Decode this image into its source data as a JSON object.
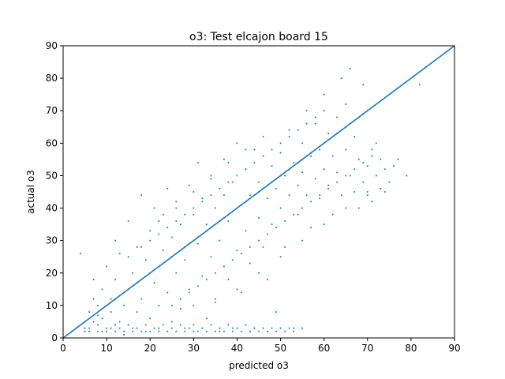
{
  "chart_data": {
    "type": "scatter",
    "title": "o3: Test elcajon board 15",
    "xlabel": "predicted o3",
    "ylabel": "actual o3",
    "xlim": [
      0,
      90
    ],
    "ylim": [
      0,
      90
    ],
    "xticks": [
      0,
      10,
      20,
      30,
      40,
      50,
      60,
      70,
      80,
      90
    ],
    "yticks": [
      0,
      10,
      20,
      30,
      40,
      50,
      60,
      70,
      80,
      90
    ],
    "grid": false,
    "legend": "none",
    "point_color": "#1f77b4",
    "line_color": "#1f77b4",
    "reference_line": {
      "x": [
        0,
        90
      ],
      "y": [
        0,
        90
      ]
    },
    "series": [
      {
        "points": [
          [
            4,
            26
          ],
          [
            3,
            3
          ],
          [
            2,
            2
          ],
          [
            5,
            5
          ],
          [
            6,
            8
          ],
          [
            5,
            3
          ],
          [
            7,
            12
          ],
          [
            6,
            2
          ],
          [
            8,
            4
          ],
          [
            7,
            18
          ],
          [
            8,
            10
          ],
          [
            9,
            6
          ],
          [
            9,
            15
          ],
          [
            10,
            3
          ],
          [
            10,
            22
          ],
          [
            11,
            8
          ],
          [
            11,
            12
          ],
          [
            12,
            30
          ],
          [
            12,
            2
          ],
          [
            12,
            18
          ],
          [
            13,
            5
          ],
          [
            13,
            26
          ],
          [
            14,
            10
          ],
          [
            14,
            1
          ],
          [
            15,
            36
          ],
          [
            15,
            15
          ],
          [
            16,
            3
          ],
          [
            16,
            20
          ],
          [
            17,
            28
          ],
          [
            17,
            8
          ],
          [
            18,
            12
          ],
          [
            18,
            44
          ],
          [
            19,
            2
          ],
          [
            19,
            24
          ],
          [
            20,
            33
          ],
          [
            20,
            6
          ],
          [
            21,
            17
          ],
          [
            21,
            40
          ],
          [
            22,
            10
          ],
          [
            22,
            3
          ],
          [
            23,
            27
          ],
          [
            23,
            38
          ],
          [
            24,
            14
          ],
          [
            24,
            46
          ],
          [
            25,
            5
          ],
          [
            25,
            31
          ],
          [
            26,
            20
          ],
          [
            26,
            42
          ],
          [
            27,
            9
          ],
          [
            27,
            35
          ],
          [
            28,
            3
          ],
          [
            28,
            24
          ],
          [
            29,
            47
          ],
          [
            29,
            15
          ],
          [
            30,
            38
          ],
          [
            30,
            2
          ],
          [
            31,
            29
          ],
          [
            31,
            54
          ],
          [
            32,
            19
          ],
          [
            32,
            43
          ],
          [
            33,
            6
          ],
          [
            33,
            35
          ],
          [
            34,
            49
          ],
          [
            34,
            25
          ],
          [
            35,
            11
          ],
          [
            35,
            40
          ],
          [
            36,
            2
          ],
          [
            36,
            30
          ],
          [
            37,
            55
          ],
          [
            37,
            44
          ],
          [
            38,
            18
          ],
          [
            38,
            36
          ],
          [
            39,
            3
          ],
          [
            39,
            48
          ],
          [
            40,
            27
          ],
          [
            40,
            60
          ],
          [
            41,
            41
          ],
          [
            41,
            14
          ],
          [
            42,
            33
          ],
          [
            42,
            52
          ],
          [
            43,
            23
          ],
          [
            43,
            44
          ],
          [
            44,
            58
          ],
          [
            44,
            3
          ],
          [
            45,
            37
          ],
          [
            45,
            48
          ],
          [
            46,
            28
          ],
          [
            46,
            62
          ],
          [
            47,
            43
          ],
          [
            47,
            18
          ],
          [
            48,
            53
          ],
          [
            48,
            35
          ],
          [
            49,
            46
          ],
          [
            49,
            8
          ],
          [
            50,
            57
          ],
          [
            50,
            40
          ],
          [
            51,
            50
          ],
          [
            51,
            28
          ],
          [
            52,
            64
          ],
          [
            52,
            44
          ],
          [
            53,
            54
          ],
          [
            53,
            3
          ],
          [
            54,
            47
          ],
          [
            54,
            38
          ],
          [
            55,
            60
          ],
          [
            55,
            51
          ],
          [
            56,
            44
          ],
          [
            56,
            70
          ],
          [
            57,
            56
          ],
          [
            57,
            34
          ],
          [
            58,
            49
          ],
          [
            58,
            66
          ],
          [
            59,
            58
          ],
          [
            59,
            43
          ],
          [
            60,
            52
          ],
          [
            60,
            75
          ],
          [
            61,
            47
          ],
          [
            61,
            63
          ],
          [
            62,
            56
          ],
          [
            62,
            38
          ],
          [
            63,
            68
          ],
          [
            63,
            51
          ],
          [
            64,
            80
          ],
          [
            64,
            44
          ],
          [
            65,
            58
          ],
          [
            65,
            72
          ],
          [
            66,
            50
          ],
          [
            66,
            83
          ],
          [
            67,
            62
          ],
          [
            67,
            45
          ],
          [
            68,
            55
          ],
          [
            68,
            40
          ],
          [
            69,
            48
          ],
          [
            69,
            78
          ],
          [
            70,
            53
          ],
          [
            70,
            44
          ],
          [
            71,
            58
          ],
          [
            71,
            42
          ],
          [
            72,
            50
          ],
          [
            72,
            60
          ],
          [
            73,
            46
          ],
          [
            73,
            55
          ],
          [
            74,
            52
          ],
          [
            74,
            45
          ],
          [
            75,
            48
          ],
          [
            76,
            53
          ],
          [
            77,
            55
          ],
          [
            79,
            50
          ],
          [
            82,
            78
          ],
          [
            5,
            2
          ],
          [
            6,
            3
          ],
          [
            7,
            5
          ],
          [
            8,
            7
          ],
          [
            9,
            9
          ],
          [
            10,
            10
          ],
          [
            11,
            11
          ],
          [
            12,
            12
          ],
          [
            13,
            13
          ],
          [
            14,
            14
          ],
          [
            15,
            15
          ],
          [
            16,
            16
          ],
          [
            17,
            17
          ],
          [
            18,
            18
          ],
          [
            19,
            19
          ],
          [
            20,
            20
          ],
          [
            21,
            21
          ],
          [
            22,
            22
          ],
          [
            23,
            23
          ],
          [
            24,
            24
          ],
          [
            25,
            25
          ],
          [
            26,
            26
          ],
          [
            27,
            27
          ],
          [
            28,
            28
          ],
          [
            29,
            29
          ],
          [
            30,
            30
          ],
          [
            31,
            31
          ],
          [
            32,
            32
          ],
          [
            33,
            33
          ],
          [
            34,
            34
          ],
          [
            35,
            35
          ],
          [
            36,
            36
          ],
          [
            37,
            37
          ],
          [
            38,
            38
          ],
          [
            39,
            39
          ],
          [
            40,
            40
          ],
          [
            41,
            41
          ],
          [
            42,
            42
          ],
          [
            43,
            43
          ],
          [
            44,
            44
          ],
          [
            45,
            45
          ],
          [
            46,
            46
          ],
          [
            47,
            47
          ],
          [
            48,
            48
          ],
          [
            49,
            49
          ],
          [
            50,
            50
          ],
          [
            51,
            51
          ],
          [
            52,
            52
          ],
          [
            53,
            53
          ],
          [
            54,
            54
          ],
          [
            55,
            55
          ],
          [
            56,
            56
          ],
          [
            57,
            57
          ],
          [
            58,
            58
          ],
          [
            59,
            59
          ],
          [
            60,
            60
          ],
          [
            61,
            61
          ],
          [
            62,
            62
          ],
          [
            63,
            63
          ],
          [
            64,
            64
          ],
          [
            65,
            65
          ],
          [
            66,
            66
          ],
          [
            67,
            67
          ],
          [
            68,
            68
          ],
          [
            69,
            69
          ],
          [
            70,
            70
          ],
          [
            8,
            2
          ],
          [
            9,
            2
          ],
          [
            10,
            2
          ],
          [
            11,
            3
          ],
          [
            12,
            4
          ],
          [
            13,
            3
          ],
          [
            14,
            2
          ],
          [
            15,
            4
          ],
          [
            16,
            2
          ],
          [
            17,
            3
          ],
          [
            18,
            2
          ],
          [
            19,
            4
          ],
          [
            20,
            2
          ],
          [
            21,
            3
          ],
          [
            22,
            2
          ],
          [
            23,
            4
          ],
          [
            24,
            2
          ],
          [
            25,
            3
          ],
          [
            26,
            2
          ],
          [
            27,
            4
          ],
          [
            28,
            2
          ],
          [
            29,
            3
          ],
          [
            30,
            4
          ],
          [
            31,
            2
          ],
          [
            32,
            3
          ],
          [
            33,
            2
          ],
          [
            34,
            4
          ],
          [
            35,
            2
          ],
          [
            36,
            3
          ],
          [
            37,
            2
          ],
          [
            38,
            4
          ],
          [
            39,
            2
          ],
          [
            40,
            3
          ],
          [
            41,
            2
          ],
          [
            42,
            4
          ],
          [
            43,
            2
          ],
          [
            44,
            3
          ],
          [
            45,
            2
          ],
          [
            46,
            3
          ],
          [
            47,
            2
          ],
          [
            48,
            3
          ],
          [
            49,
            2
          ],
          [
            50,
            3
          ],
          [
            51,
            2
          ],
          [
            52,
            3
          ],
          [
            53,
            2
          ],
          [
            55,
            3
          ],
          [
            25,
            10
          ],
          [
            27,
            12
          ],
          [
            29,
            14
          ],
          [
            31,
            16
          ],
          [
            33,
            18
          ],
          [
            35,
            20
          ],
          [
            37,
            22
          ],
          [
            39,
            24
          ],
          [
            41,
            26
          ],
          [
            43,
            28
          ],
          [
            45,
            30
          ],
          [
            47,
            32
          ],
          [
            49,
            34
          ],
          [
            51,
            36
          ],
          [
            53,
            38
          ],
          [
            55,
            40
          ],
          [
            57,
            42
          ],
          [
            59,
            44
          ],
          [
            61,
            46
          ],
          [
            63,
            48
          ],
          [
            65,
            50
          ],
          [
            67,
            52
          ],
          [
            69,
            54
          ],
          [
            71,
            56
          ],
          [
            20,
            30
          ],
          [
            22,
            32
          ],
          [
            24,
            34
          ],
          [
            26,
            36
          ],
          [
            28,
            38
          ],
          [
            30,
            40
          ],
          [
            32,
            42
          ],
          [
            34,
            44
          ],
          [
            36,
            46
          ],
          [
            38,
            48
          ],
          [
            40,
            50
          ],
          [
            42,
            52
          ],
          [
            44,
            54
          ],
          [
            46,
            56
          ],
          [
            48,
            58
          ],
          [
            50,
            60
          ],
          [
            52,
            62
          ],
          [
            54,
            64
          ],
          [
            56,
            66
          ],
          [
            58,
            68
          ],
          [
            60,
            70
          ],
          [
            30,
            10
          ],
          [
            35,
            12
          ],
          [
            40,
            15
          ],
          [
            45,
            20
          ],
          [
            50,
            25
          ],
          [
            55,
            30
          ],
          [
            60,
            35
          ],
          [
            65,
            40
          ],
          [
            70,
            45
          ],
          [
            15,
            25
          ],
          [
            18,
            28
          ],
          [
            22,
            36
          ],
          [
            26,
            40
          ],
          [
            30,
            45
          ],
          [
            34,
            50
          ],
          [
            38,
            54
          ],
          [
            42,
            58
          ]
        ]
      }
    ]
  }
}
